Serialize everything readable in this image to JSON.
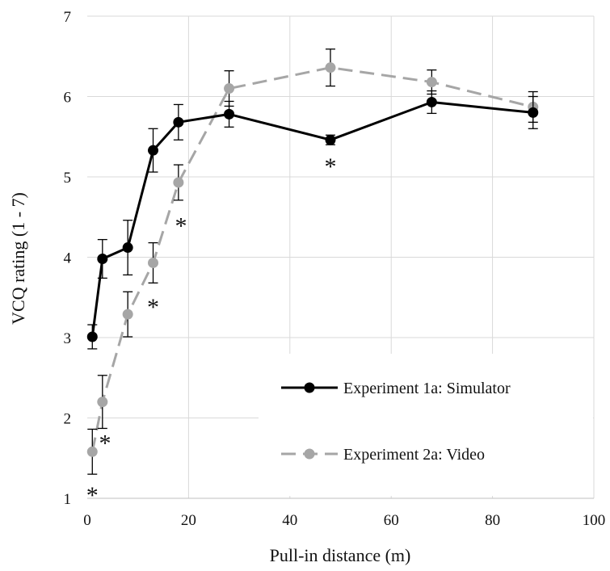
{
  "chart_data": {
    "type": "line",
    "xlabel": "Pull-in distance (m)",
    "ylabel": "VCQ rating (1 - 7)",
    "xlim": [
      0,
      100
    ],
    "ylim": [
      1,
      7
    ],
    "x_ticks": [
      "0",
      "20",
      "40",
      "60",
      "80",
      "100"
    ],
    "y_ticks": [
      "1",
      "2",
      "3",
      "4",
      "5",
      "6",
      "7"
    ],
    "grid": true,
    "legend_position": "bottom-right",
    "series": [
      {
        "name": "Experiment 1a: Simulator",
        "color": "#000000",
        "line_style": "solid",
        "x": [
          1,
          3,
          8,
          13,
          18,
          28,
          48,
          68,
          88
        ],
        "y": [
          3.01,
          3.98,
          4.12,
          5.33,
          5.68,
          5.78,
          5.46,
          5.93,
          5.8
        ],
        "error": [
          0.15,
          0.24,
          0.34,
          0.27,
          0.22,
          0.16,
          0.06,
          0.14,
          0.2
        ]
      },
      {
        "name": "Experiment 2a: Video",
        "color": "#a6a6a6",
        "line_style": "dashed",
        "x": [
          1,
          3,
          8,
          13,
          18,
          28,
          48,
          68,
          88
        ],
        "y": [
          1.58,
          2.2,
          3.29,
          3.93,
          4.93,
          6.1,
          6.36,
          6.18,
          5.87
        ],
        "error": [
          0.28,
          0.33,
          0.28,
          0.25,
          0.22,
          0.22,
          0.23,
          0.15,
          0.19
        ]
      }
    ],
    "annotations": [
      {
        "text": "*",
        "x": 1,
        "y": 1.08
      },
      {
        "text": "*",
        "x": 3.5,
        "y": 1.73
      },
      {
        "text": "*",
        "x": 13,
        "y": 3.42
      },
      {
        "text": "*",
        "x": 18.5,
        "y": 4.43
      },
      {
        "text": "*",
        "x": 48,
        "y": 5.17
      }
    ]
  }
}
